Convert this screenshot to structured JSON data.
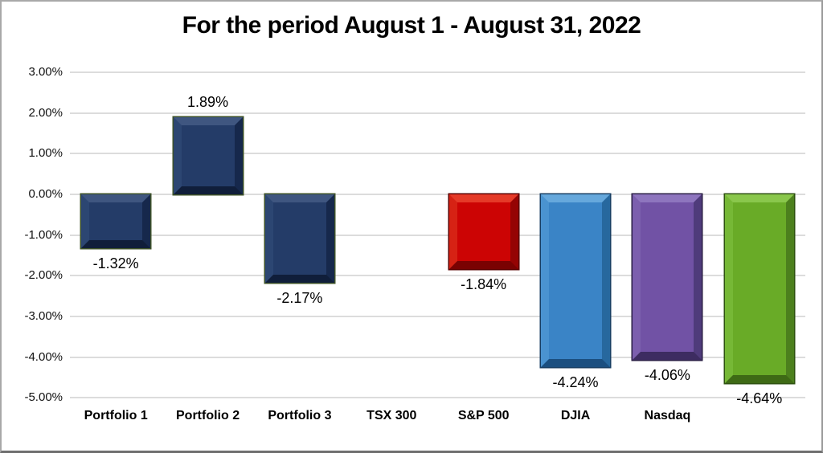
{
  "chart_data": {
    "type": "bar",
    "title": "For the period August 1 - August 31, 2022",
    "xlabel": "",
    "ylabel": "",
    "ylim": [
      -5,
      3
    ],
    "grid": true,
    "legend": "none",
    "gridline_color": "#dcdcdc",
    "y_ticks": [
      {
        "value": 3,
        "label": "3.00%"
      },
      {
        "value": 2,
        "label": "2.00%"
      },
      {
        "value": 1,
        "label": "1.00%"
      },
      {
        "value": 0,
        "label": "0.00%"
      },
      {
        "value": -1,
        "label": "-1.00%"
      },
      {
        "value": -2,
        "label": "-2.00%"
      },
      {
        "value": -3,
        "label": "-3.00%"
      },
      {
        "value": -4,
        "label": "-4.00%"
      },
      {
        "value": -5,
        "label": "-5.00%"
      }
    ],
    "categories": [
      "Portfolio 1",
      "Portfolio 2",
      "Portfolio 3",
      "TSX 300",
      "S&P 500",
      "DJIA",
      "Nasdaq",
      ""
    ],
    "values": [
      -1.32,
      1.89,
      -2.17,
      null,
      -1.84,
      -4.24,
      -4.06,
      -4.64
    ],
    "bars": [
      {
        "category": "Portfolio 1",
        "value": -1.32,
        "data_label": "-1.32%",
        "colors": {
          "face": "#243C68",
          "bevel_top": "#3F5680",
          "bevel_left": "#2C4672",
          "bevel_right": "#16284C",
          "bevel_bottom": "#101E3A",
          "outline": "#3f5328"
        }
      },
      {
        "category": "Portfolio 2",
        "value": 1.89,
        "data_label": "1.89%",
        "colors": {
          "face": "#243C68",
          "bevel_top": "#3F5680",
          "bevel_left": "#2C4672",
          "bevel_right": "#16284C",
          "bevel_bottom": "#101E3A",
          "outline": "#3f5328"
        }
      },
      {
        "category": "Portfolio 3",
        "value": -2.17,
        "data_label": "-2.17%",
        "colors": {
          "face": "#243C68",
          "bevel_top": "#3F5680",
          "bevel_left": "#2C4672",
          "bevel_right": "#16284C",
          "bevel_bottom": "#101E3A",
          "outline": "#3f5328"
        }
      },
      {
        "category": "TSX 300",
        "value": null,
        "data_label": "",
        "colors": null
      },
      {
        "category": "S&P 500",
        "value": -1.84,
        "data_label": "-1.84%",
        "colors": {
          "face": "#CC0404",
          "bevel_top": "#E53A28",
          "bevel_left": "#D62214",
          "bevel_right": "#950404",
          "bevel_bottom": "#7A0202",
          "outline": "#5a0000"
        }
      },
      {
        "category": "DJIA",
        "value": -4.24,
        "data_label": "-4.24%",
        "colors": {
          "face": "#3A84C6",
          "bevel_top": "#66A8DC",
          "bevel_left": "#4A93D0",
          "bevel_right": "#27689E",
          "bevel_bottom": "#1B4F80",
          "outline": "#173e63"
        }
      },
      {
        "category": "Nasdaq",
        "value": -4.06,
        "data_label": "-4.06%",
        "colors": {
          "face": "#7152A5",
          "bevel_top": "#8E75BE",
          "bevel_left": "#7C5FAE",
          "bevel_right": "#4F3B7B",
          "bevel_bottom": "#3D2C61",
          "outline": "#2a1e45"
        }
      },
      {
        "category": "",
        "value": -4.64,
        "data_label": "-4.64%",
        "colors": {
          "face": "#69AB27",
          "bevel_top": "#8AC74C",
          "bevel_left": "#76B836",
          "bevel_right": "#4C801D",
          "bevel_bottom": "#3E6A15",
          "outline": "#2e5210"
        }
      }
    ]
  }
}
